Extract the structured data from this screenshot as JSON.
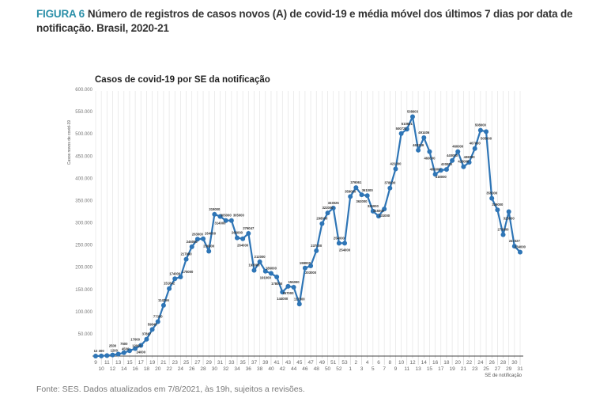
{
  "figure": {
    "number": "FIGURA 6",
    "title": "Número de registros de casos novos (A) de covid-19 e média móvel dos últimos 7 dias por data de notificação. Brasil, 2020-21",
    "footer": "Fonte: SES. Dados atualizados em 7/8/2021, às 19h, sujeitos a revisões."
  },
  "chart_data": {
    "type": "line",
    "title": "Casos de covid-19 por SE da notificação",
    "xlabel": "SE de notificação",
    "ylabel": "Casos novos de covid-19",
    "ylim": [
      0,
      600000
    ],
    "yticks": [
      "50.000",
      "100.000",
      "150.000",
      "200.000",
      "250.000",
      "300.000",
      "350.000",
      "400.000",
      "450.000",
      "500.000",
      "550.000",
      "600.000"
    ],
    "grid": "vertical",
    "colors": {
      "line": "#2e75b6",
      "marker": "#2e75b6",
      "grid": "#e4e4e4"
    },
    "categories": [
      "9",
      "10",
      "11",
      "12",
      "13",
      "14",
      "15",
      "16",
      "17",
      "18",
      "19",
      "20",
      "21",
      "22",
      "23",
      "24",
      "25",
      "26",
      "27",
      "28",
      "29",
      "30",
      "31",
      "32",
      "33",
      "34",
      "35",
      "36",
      "37",
      "38",
      "39",
      "40",
      "41",
      "42",
      "43",
      "44",
      "45",
      "46",
      "47",
      "48",
      "49",
      "50",
      "51",
      "52",
      "53",
      "1",
      "2",
      "3",
      "4",
      "5",
      "6",
      "7",
      "8",
      "9",
      "10",
      "11",
      "12",
      "13",
      "14",
      "15",
      "16",
      "17",
      "18",
      "19",
      "20",
      "21",
      "22",
      "23",
      "24",
      "25",
      "26",
      "27",
      "28",
      "29",
      "30",
      "31"
    ],
    "values": [
      12,
      300,
      1200,
      2500,
      4500,
      7500,
      12000,
      17000,
      24000,
      37867,
      59845,
      77350,
      114256,
      151842,
      174000,
      178000,
      217980,
      246000,
      263000,
      264000,
      236000,
      319000,
      314000,
      305000,
      305000,
      266000,
      264000,
      276047,
      193000,
      212000,
      191000,
      186000,
      178000,
      144000,
      157000,
      155000,
      117000,
      198000,
      203000,
      237000,
      298000,
      322000,
      333025,
      254000,
      254000,
      359000,
      379061,
      363000,
      361000,
      326000,
      315000,
      331000,
      378000,
      421000,
      500722,
      510601,
      538603,
      463239,
      491406,
      460000,
      409000,
      418000,
      420000,
      440000,
      460000,
      426000,
      436000,
      467000,
      508000,
      505000,
      355000,
      329000,
      273000,
      325000,
      247327,
      234000
    ]
  }
}
